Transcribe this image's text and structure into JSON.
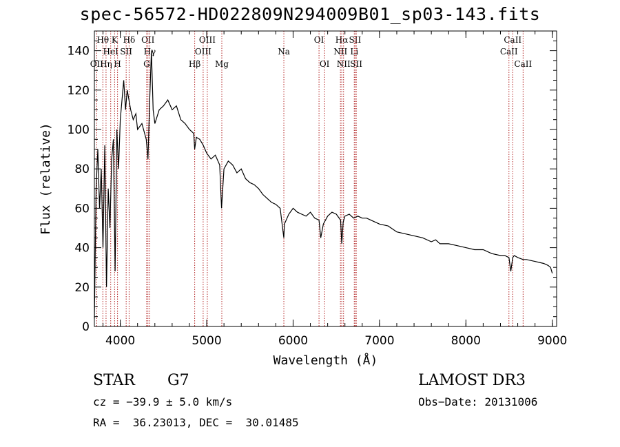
{
  "chart_data": {
    "type": "line",
    "title": "spec-56572-HD022809N294009B01_sp03-143.fits",
    "xlabel": "Wavelength (Å)",
    "ylabel": "Flux (relative)",
    "xlim": [
      3700,
      9050
    ],
    "ylim": [
      0,
      150
    ],
    "xticks": [
      4000,
      5000,
      6000,
      7000,
      8000,
      9000
    ],
    "yticks": [
      0,
      20,
      40,
      60,
      80,
      100,
      120,
      140
    ],
    "series": [
      {
        "name": "spectrum",
        "x": [
          3700,
          3720,
          3740,
          3760,
          3780,
          3800,
          3820,
          3840,
          3860,
          3880,
          3900,
          3920,
          3940,
          3960,
          3980,
          4000,
          4020,
          4040,
          4060,
          4080,
          4100,
          4120,
          4150,
          4180,
          4200,
          4250,
          4300,
          4320,
          4340,
          4360,
          4380,
          4400,
          4450,
          4500,
          4550,
          4600,
          4650,
          4700,
          4750,
          4800,
          4850,
          4861,
          4880,
          4920,
          4960,
          5000,
          5050,
          5100,
          5150,
          5172,
          5200,
          5250,
          5300,
          5350,
          5400,
          5450,
          5500,
          5550,
          5600,
          5650,
          5700,
          5750,
          5800,
          5850,
          5893,
          5900,
          5950,
          6000,
          6050,
          6100,
          6150,
          6200,
          6250,
          6300,
          6320,
          6350,
          6400,
          6450,
          6500,
          6550,
          6563,
          6580,
          6600,
          6650,
          6700,
          6750,
          6800,
          6850,
          6900,
          6950,
          7000,
          7100,
          7200,
          7300,
          7400,
          7500,
          7600,
          7650,
          7700,
          7800,
          7900,
          8000,
          8100,
          8200,
          8300,
          8400,
          8450,
          8498,
          8520,
          8542,
          8560,
          8600,
          8662,
          8700,
          8800,
          8900,
          8950,
          8980,
          9000
        ],
        "y": [
          4,
          70,
          90,
          60,
          80,
          40,
          92,
          20,
          70,
          50,
          85,
          95,
          28,
          100,
          80,
          105,
          115,
          125,
          110,
          120,
          115,
          110,
          105,
          108,
          100,
          103,
          95,
          85,
          115,
          140,
          110,
          103,
          110,
          112,
          115,
          110,
          112,
          105,
          103,
          100,
          98,
          90,
          96,
          95,
          92,
          88,
          85,
          87,
          82,
          60,
          80,
          84,
          82,
          78,
          80,
          75,
          73,
          72,
          70,
          67,
          65,
          63,
          62,
          60,
          45,
          52,
          57,
          60,
          58,
          57,
          56,
          58,
          55,
          54,
          45,
          52,
          56,
          58,
          57,
          54,
          42,
          53,
          56,
          57,
          55,
          56,
          55,
          55,
          54,
          53,
          52,
          51,
          48,
          47,
          46,
          45,
          43,
          44,
          42,
          42,
          41,
          40,
          39,
          39,
          37,
          36,
          36,
          35,
          28,
          35,
          36,
          35,
          34,
          34,
          33,
          32,
          31,
          30,
          27
        ]
      }
    ],
    "lines": [
      {
        "name": "Hθ",
        "x": 3798,
        "row": 0
      },
      {
        "name": "OII",
        "x": 3727,
        "row": 2
      },
      {
        "name": "Hη",
        "x": 3835,
        "row": 2
      },
      {
        "name": "HeI",
        "x": 3889,
        "row": 1
      },
      {
        "name": "K",
        "x": 3934,
        "row": 0
      },
      {
        "name": "H",
        "x": 3968,
        "row": 2
      },
      {
        "name": "Hδ",
        "x": 4102,
        "row": 0
      },
      {
        "name": "SII",
        "x": 4068,
        "row": 1
      },
      {
        "name": "OII",
        "x": 4320,
        "row": 0
      },
      {
        "name": "Hγ",
        "x": 4341,
        "row": 1
      },
      {
        "name": "G",
        "x": 4305,
        "row": 2
      },
      {
        "name": "OIII",
        "x": 5007,
        "row": 0
      },
      {
        "name": "OIII",
        "x": 4959,
        "row": 1
      },
      {
        "name": "Hβ",
        "x": 4861,
        "row": 2
      },
      {
        "name": "Mg",
        "x": 5175,
        "row": 2
      },
      {
        "name": "Na",
        "x": 5893,
        "row": 1
      },
      {
        "name": "OI",
        "x": 6300,
        "row": 0
      },
      {
        "name": "OI",
        "x": 6364,
        "row": 2
      },
      {
        "name": "Hα",
        "x": 6563,
        "row": 0
      },
      {
        "name": "NII",
        "x": 6548,
        "row": 1
      },
      {
        "name": "NII",
        "x": 6584,
        "row": 2
      },
      {
        "name": "SII",
        "x": 6717,
        "row": 0
      },
      {
        "name": "Li",
        "x": 6708,
        "row": 1
      },
      {
        "name": "SII",
        "x": 6731,
        "row": 2
      },
      {
        "name": "CaII",
        "x": 8542,
        "row": 0
      },
      {
        "name": "CaII",
        "x": 8498,
        "row": 1
      },
      {
        "name": "CaII",
        "x": 8662,
        "row": 2
      }
    ]
  },
  "info": {
    "object_type": "STAR",
    "subclass": "G7",
    "survey": "LAMOST DR3",
    "cz": "cz = −39.9 ± 5.0 km/s",
    "obs_date": "Obs−Date: 20131006",
    "coords": "RA =  36.23013, DEC =  30.01485"
  },
  "colors": {
    "line_marker": "#b22222",
    "spectrum": "#000000"
  }
}
